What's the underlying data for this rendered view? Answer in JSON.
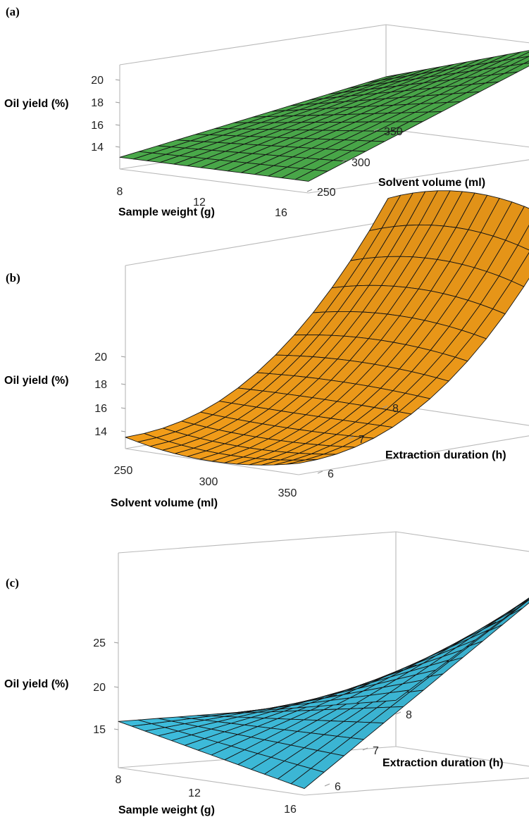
{
  "colors": {
    "panel_a": "#4cae4c",
    "panel_b": "#f7a01a",
    "panel_c": "#3fc0e0",
    "grid": "#141414",
    "box": "#b9b9b9"
  },
  "chart_data": [
    {
      "type": "surface",
      "panel_label": "(a)",
      "title": "",
      "zlabel": "Oil yield (%)",
      "xlabel": "Sample weight (g)",
      "ylabel": "Solvent volume (ml)",
      "x_ticks": [
        "8",
        "12",
        "16"
      ],
      "y_ticks": [
        "250",
        "300",
        "350"
      ],
      "z_ticks": [
        "14",
        "16",
        "18",
        "20"
      ],
      "xlim": [
        8,
        16
      ],
      "ylim": [
        250,
        350
      ],
      "zlim": [
        13,
        21
      ],
      "grid_points": 15,
      "corners": {
        "x8_y250": 13.9,
        "x16_y250": 13.9,
        "x8_y350": 17.0,
        "x16_y350": 21.5
      },
      "curvature": 0.0
    },
    {
      "type": "surface",
      "panel_label": "(b)",
      "title": "",
      "zlabel": "Oil yield (%)",
      "xlabel": "Solvent volume (ml)",
      "ylabel": "Extraction duration (h)",
      "x_ticks": [
        "250",
        "300",
        "350"
      ],
      "y_ticks": [
        "6",
        "7",
        "8"
      ],
      "z_ticks": [
        "14",
        "16",
        "18",
        "20"
      ],
      "xlim": [
        250,
        350
      ],
      "ylim": [
        6,
        8
      ],
      "zlim": [
        13,
        21
      ],
      "grid_points": 15,
      "corners": {
        "x250_y6": 13.5,
        "x350_y6": 13.5,
        "x250_y8": 22.0,
        "x350_y8": 22.0
      },
      "curvature": 1.6
    },
    {
      "type": "surface",
      "panel_label": "(c)",
      "title": "",
      "zlabel": "Oil yield (%)",
      "xlabel": "Sample weight (g)",
      "ylabel": "Extraction duration (h)",
      "x_ticks": [
        "8",
        "12",
        "16"
      ],
      "y_ticks": [
        "6",
        "7",
        "8"
      ],
      "z_ticks": [
        "15",
        "20",
        "25"
      ],
      "xlim": [
        8,
        16
      ],
      "ylim": [
        6,
        8
      ],
      "zlim": [
        13,
        26
      ],
      "grid_points": 15,
      "corners": {
        "x8_y6": 15.8,
        "x16_y6": 13.4,
        "x8_y8": 15.8,
        "x16_y8": 26.0
      },
      "curvature": 0.0
    }
  ]
}
